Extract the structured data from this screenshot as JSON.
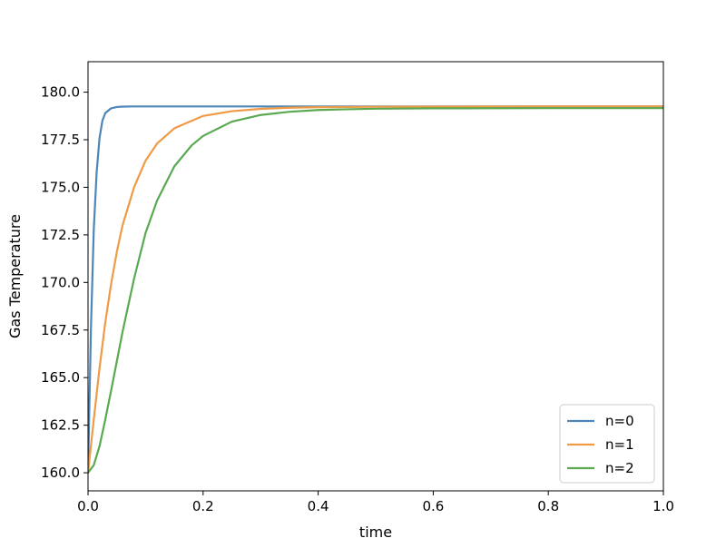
{
  "chart_data": {
    "type": "line",
    "title": "",
    "xlabel": "time",
    "ylabel": "Gas Temperature",
    "xlim": [
      0.0,
      1.0
    ],
    "ylim": [
      159.05,
      181.6
    ],
    "x_ticks": [
      "0.0",
      "0.2",
      "0.4",
      "0.6",
      "0.8",
      "1.0"
    ],
    "y_ticks": [
      "160.0",
      "162.5",
      "165.0",
      "167.5",
      "170.0",
      "172.5",
      "175.0",
      "177.5",
      "180.0"
    ],
    "grid": false,
    "legend_position": "bottom-right",
    "series": [
      {
        "name": "n=0",
        "color": "#4e86b8",
        "x": [
          0.0,
          0.005,
          0.01,
          0.015,
          0.02,
          0.025,
          0.03,
          0.04,
          0.05,
          0.06,
          0.08,
          0.1,
          0.2,
          0.4,
          0.6,
          0.8,
          1.0
        ],
        "y": [
          160.0,
          167.5,
          172.8,
          175.8,
          177.6,
          178.5,
          178.9,
          179.15,
          179.22,
          179.24,
          179.25,
          179.25,
          179.25,
          179.25,
          179.25,
          179.25,
          179.25
        ]
      },
      {
        "name": "n=1",
        "color": "#ef9a45",
        "x": [
          0.0,
          0.01,
          0.02,
          0.03,
          0.04,
          0.05,
          0.06,
          0.08,
          0.1,
          0.12,
          0.15,
          0.2,
          0.25,
          0.3,
          0.35,
          0.4,
          0.5,
          0.6,
          0.8,
          1.0
        ],
        "y": [
          160.0,
          162.8,
          165.5,
          167.9,
          169.9,
          171.6,
          173.0,
          175.0,
          176.4,
          177.3,
          178.1,
          178.75,
          179.0,
          179.12,
          179.18,
          179.21,
          179.23,
          179.24,
          179.25,
          179.25
        ]
      },
      {
        "name": "n=2",
        "color": "#5aa951",
        "x": [
          0.0,
          0.01,
          0.02,
          0.03,
          0.04,
          0.06,
          0.08,
          0.1,
          0.12,
          0.15,
          0.18,
          0.2,
          0.25,
          0.3,
          0.35,
          0.4,
          0.45,
          0.5,
          0.6,
          0.8,
          1.0
        ],
        "y": [
          160.0,
          160.4,
          161.4,
          162.8,
          164.3,
          167.4,
          170.2,
          172.6,
          174.3,
          176.1,
          177.2,
          177.7,
          178.45,
          178.8,
          178.97,
          179.06,
          179.1,
          179.13,
          179.15,
          179.16,
          179.16
        ]
      }
    ]
  }
}
